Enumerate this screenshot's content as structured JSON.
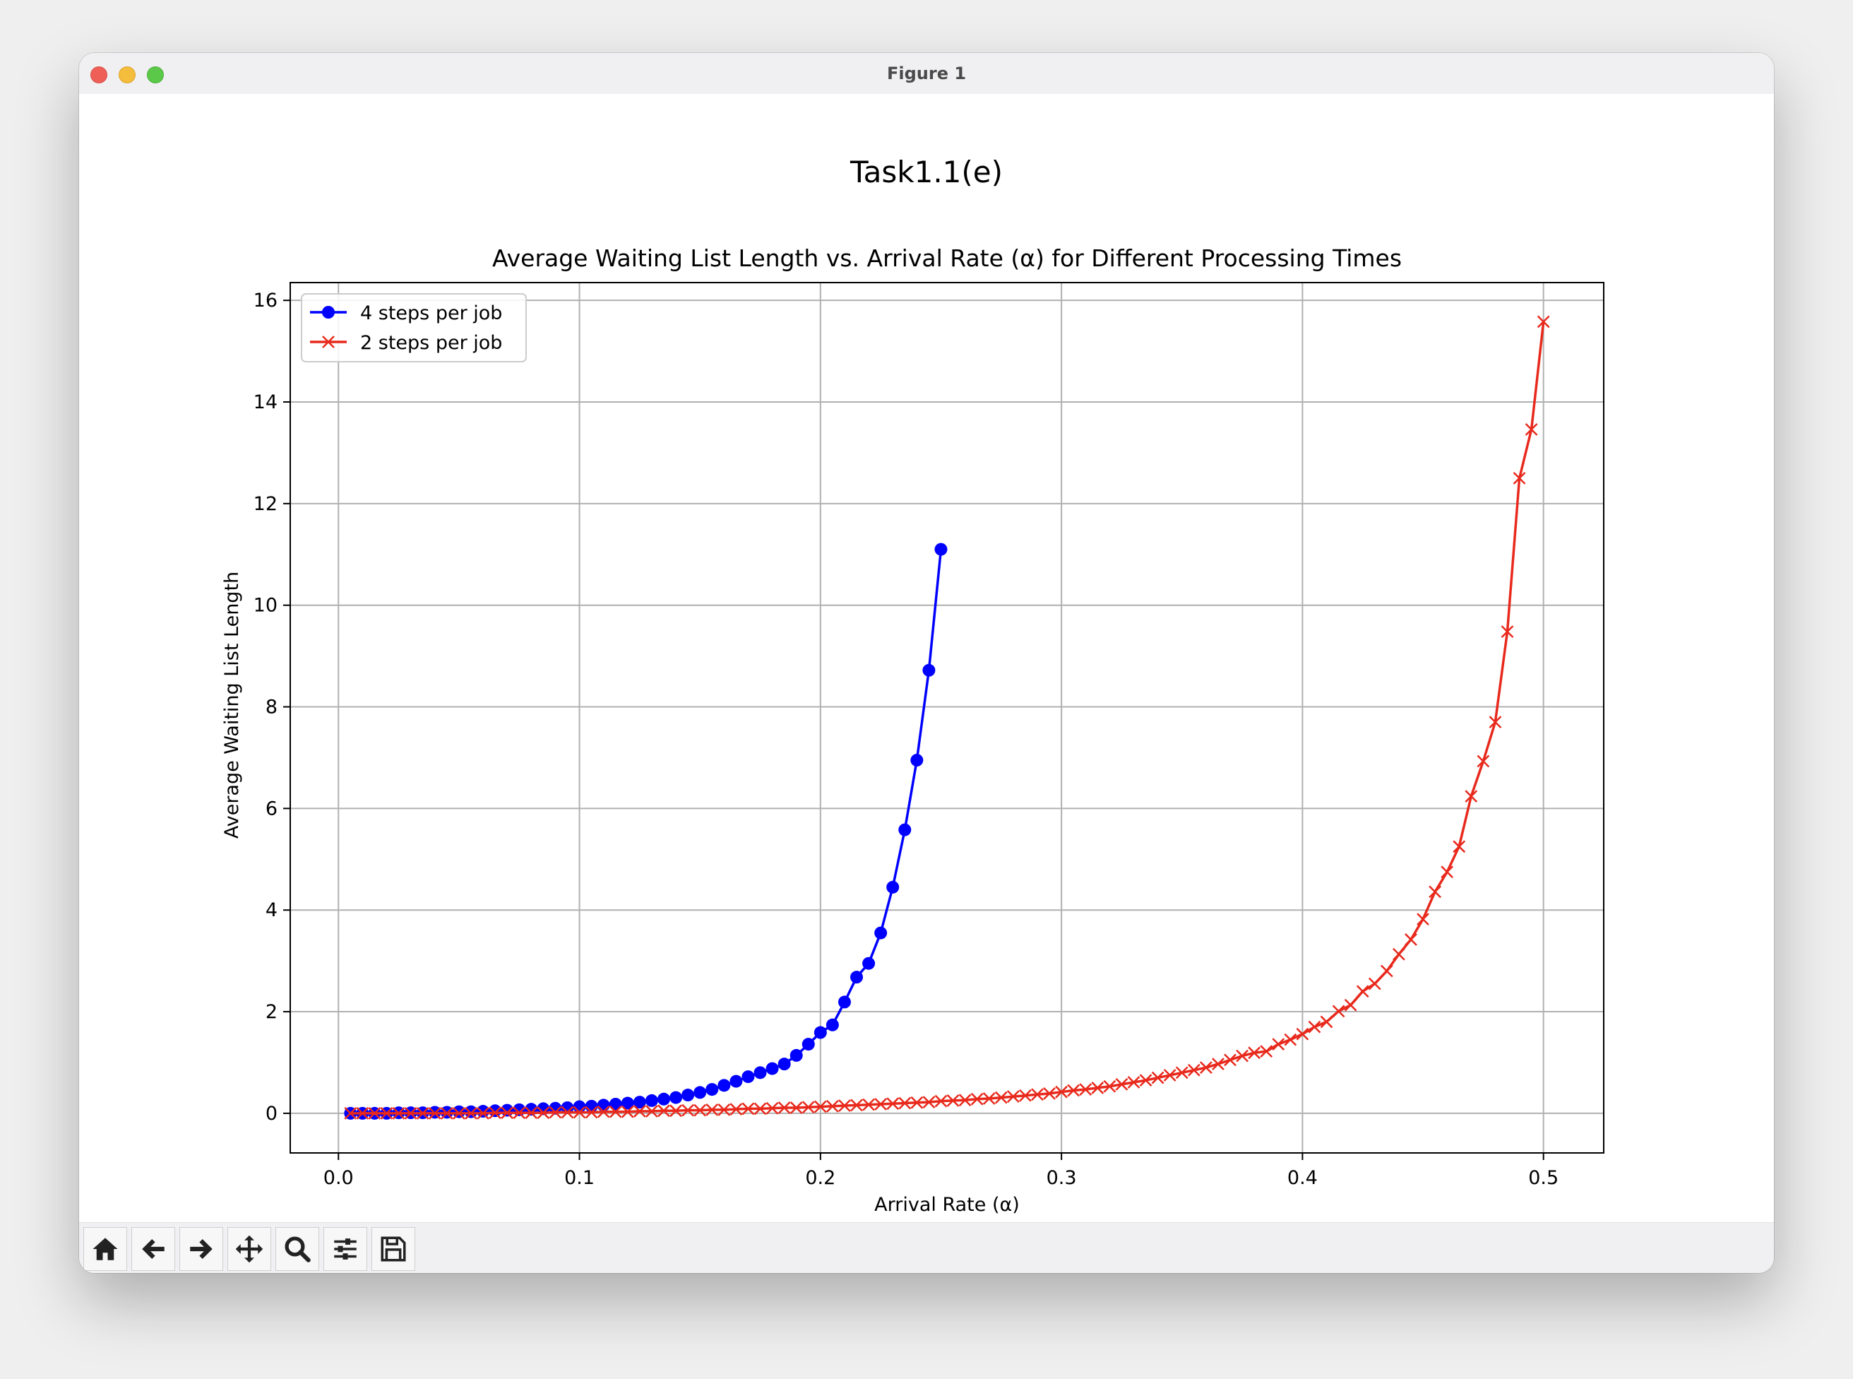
{
  "window": {
    "title": "Figure 1"
  },
  "figure": {
    "suptitle": "Task1.1(e)"
  },
  "toolbar": {
    "tools": [
      "home-icon",
      "back-arrow-icon",
      "forward-arrow-icon",
      "pan-move-icon",
      "zoom-magnifier-icon",
      "configure-subplots-icon",
      "save-floppy-icon"
    ]
  },
  "chart_data": {
    "type": "line",
    "title": "Average Waiting List Length vs. Arrival Rate (α) for Different Processing Times",
    "xlabel": "Arrival Rate (α)",
    "ylabel": "Average Waiting List Length",
    "xlim": [
      -0.02,
      0.525
    ],
    "ylim": [
      -0.78,
      16.35
    ],
    "xticks": [
      0.0,
      0.1,
      0.2,
      0.3,
      0.4,
      0.5
    ],
    "xtick_labels": [
      "0.0",
      "0.1",
      "0.2",
      "0.3",
      "0.4",
      "0.5"
    ],
    "yticks": [
      0,
      2,
      4,
      6,
      8,
      10,
      12,
      14,
      16
    ],
    "ytick_labels": [
      "0",
      "2",
      "4",
      "6",
      "8",
      "10",
      "12",
      "14",
      "16"
    ],
    "grid": true,
    "legend": "upper-left",
    "series": [
      {
        "name": "4 steps per job",
        "color": "#0000ff",
        "marker": "circle",
        "x": [
          0.005,
          0.01,
          0.015,
          0.02,
          0.025,
          0.03,
          0.035,
          0.04,
          0.045,
          0.05,
          0.055,
          0.06,
          0.065,
          0.07,
          0.075,
          0.08,
          0.085,
          0.09,
          0.095,
          0.1,
          0.105,
          0.11,
          0.115,
          0.12,
          0.125,
          0.13,
          0.135,
          0.14,
          0.145,
          0.15,
          0.155,
          0.16,
          0.165,
          0.17,
          0.175,
          0.18,
          0.185,
          0.19,
          0.195,
          0.2,
          0.205,
          0.21,
          0.215,
          0.22,
          0.225,
          0.23,
          0.235,
          0.24,
          0.245,
          0.25
        ],
        "y": [
          0.0,
          0.0,
          0.0,
          0.0,
          0.01,
          0.01,
          0.01,
          0.02,
          0.02,
          0.03,
          0.03,
          0.04,
          0.05,
          0.06,
          0.07,
          0.08,
          0.09,
          0.1,
          0.11,
          0.13,
          0.14,
          0.16,
          0.18,
          0.2,
          0.22,
          0.25,
          0.28,
          0.31,
          0.36,
          0.41,
          0.47,
          0.55,
          0.63,
          0.72,
          0.8,
          0.88,
          0.97,
          1.14,
          1.36,
          1.59,
          1.74,
          2.19,
          2.68,
          2.95,
          3.55,
          4.45,
          5.58,
          6.95,
          8.72,
          11.1
        ]
      },
      {
        "name": "2 steps per job",
        "color": "#e8291c",
        "marker": "x",
        "x": [
          0.005,
          0.01,
          0.015,
          0.02,
          0.025,
          0.03,
          0.035,
          0.04,
          0.045,
          0.05,
          0.055,
          0.06,
          0.065,
          0.07,
          0.075,
          0.08,
          0.085,
          0.09,
          0.095,
          0.1,
          0.105,
          0.11,
          0.115,
          0.12,
          0.125,
          0.13,
          0.135,
          0.14,
          0.145,
          0.15,
          0.155,
          0.16,
          0.165,
          0.17,
          0.175,
          0.18,
          0.185,
          0.19,
          0.195,
          0.2,
          0.205,
          0.21,
          0.215,
          0.22,
          0.225,
          0.23,
          0.235,
          0.24,
          0.245,
          0.25,
          0.255,
          0.26,
          0.265,
          0.27,
          0.275,
          0.28,
          0.285,
          0.29,
          0.295,
          0.3,
          0.305,
          0.31,
          0.315,
          0.32,
          0.325,
          0.33,
          0.335,
          0.34,
          0.345,
          0.35,
          0.355,
          0.36,
          0.365,
          0.37,
          0.375,
          0.38,
          0.385,
          0.39,
          0.395,
          0.4,
          0.405,
          0.41,
          0.415,
          0.42,
          0.425,
          0.43,
          0.435,
          0.44,
          0.445,
          0.45,
          0.455,
          0.46,
          0.465,
          0.47,
          0.475,
          0.48,
          0.485,
          0.49,
          0.495,
          0.5
        ],
        "y": [
          0.0,
          0.0,
          0.0,
          0.0,
          0.0,
          0.0,
          0.0,
          0.0,
          0.0,
          0.0,
          0.0,
          0.0,
          0.01,
          0.01,
          0.01,
          0.01,
          0.01,
          0.02,
          0.02,
          0.02,
          0.02,
          0.03,
          0.03,
          0.03,
          0.04,
          0.04,
          0.05,
          0.05,
          0.06,
          0.06,
          0.07,
          0.07,
          0.08,
          0.09,
          0.09,
          0.1,
          0.11,
          0.11,
          0.12,
          0.13,
          0.14,
          0.15,
          0.16,
          0.17,
          0.18,
          0.19,
          0.2,
          0.21,
          0.22,
          0.24,
          0.25,
          0.26,
          0.28,
          0.29,
          0.31,
          0.33,
          0.35,
          0.37,
          0.39,
          0.42,
          0.45,
          0.47,
          0.5,
          0.53,
          0.57,
          0.61,
          0.65,
          0.7,
          0.75,
          0.8,
          0.85,
          0.9,
          0.97,
          1.05,
          1.13,
          1.19,
          1.22,
          1.36,
          1.45,
          1.56,
          1.7,
          1.8,
          2.01,
          2.13,
          2.4,
          2.55,
          2.8,
          3.13,
          3.42,
          3.82,
          4.36,
          4.75,
          5.25,
          6.24,
          6.93,
          7.7,
          9.48,
          12.5,
          13.46,
          15.58
        ]
      }
    ]
  }
}
